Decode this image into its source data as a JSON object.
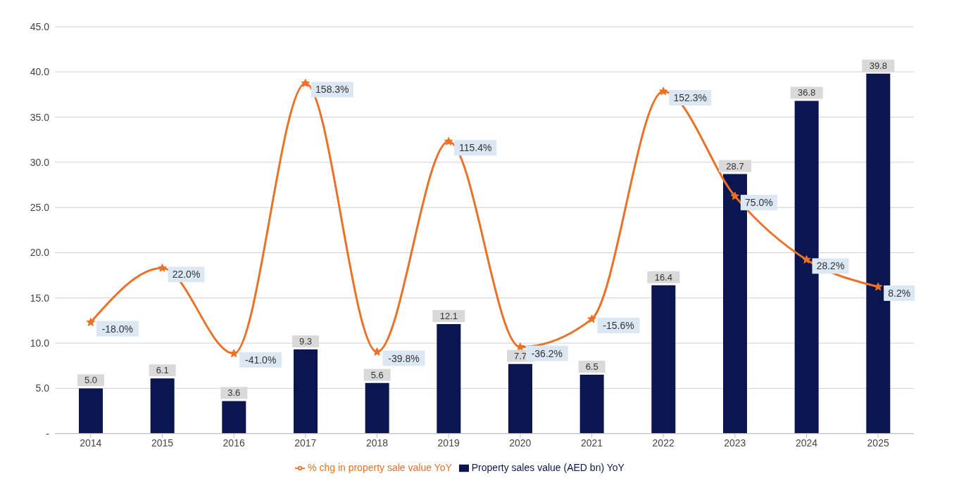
{
  "chart_data": {
    "type": "bar",
    "categories": [
      "2014",
      "2015",
      "2016",
      "2017",
      "2018",
      "2019",
      "2020",
      "2021",
      "2022",
      "2023",
      "2024",
      "2025"
    ],
    "series": [
      {
        "name": "Property sales value (AED bn) YoY",
        "color": "#0b1650",
        "values": [
          5.0,
          6.1,
          3.6,
          9.3,
          5.6,
          12.1,
          7.7,
          6.5,
          16.4,
          28.7,
          36.8,
          39.8
        ],
        "value_labels": [
          "5.0",
          "6.1",
          "3.6",
          "9.3",
          "5.6",
          "12.1",
          "7.7",
          "6.5",
          "16.4",
          "28.7",
          "36.8",
          "39.8"
        ]
      },
      {
        "type": "line",
        "axis": "y2",
        "name": "% chg in property sale value YoY",
        "color": "#ea7125",
        "values": [
          -18.0,
          22.0,
          -41.0,
          158.3,
          -39.8,
          115.4,
          -36.2,
          -15.6,
          152.3,
          75.0,
          28.2,
          8.2
        ],
        "value_labels": [
          "-18.0%",
          "22.0%",
          "-41.0%",
          "158.3%",
          "-39.8%",
          "115.4%",
          "-36.2%",
          "-15.6%",
          "152.3%",
          "75.0%",
          "28.2%",
          "8.2%"
        ]
      }
    ],
    "ylim": [
      0,
      45
    ],
    "yticks": [
      {
        "value": 0,
        "label": "-"
      },
      {
        "value": 5,
        "label": "5.0"
      },
      {
        "value": 10,
        "label": "10.0"
      },
      {
        "value": 15,
        "label": "15.0"
      },
      {
        "value": 20,
        "label": "20.0"
      },
      {
        "value": 25,
        "label": "25.0"
      },
      {
        "value": 30,
        "label": "30.0"
      },
      {
        "value": 35,
        "label": "35.0"
      },
      {
        "value": 40,
        "label": "40.0"
      },
      {
        "value": 45,
        "label": "45.0"
      }
    ],
    "y2lim": [
      -100,
      200
    ],
    "grid": "y",
    "legend": "bottom",
    "marker": "star",
    "line_style": "solid"
  }
}
